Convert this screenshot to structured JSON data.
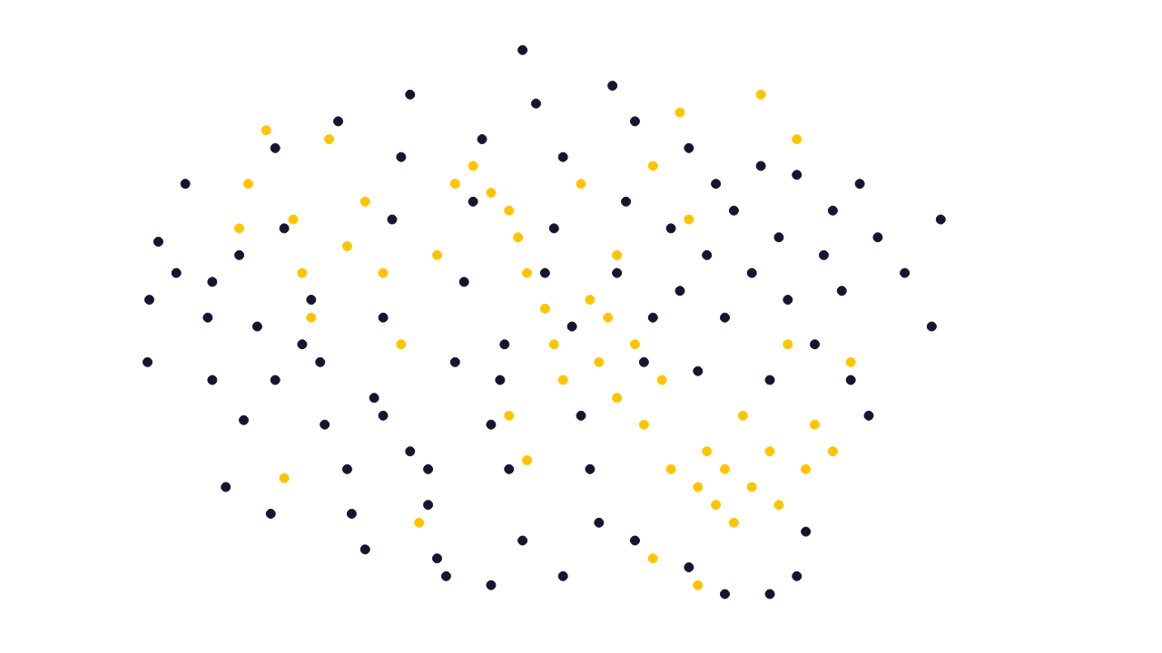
{
  "chart_data": {
    "type": "scatter",
    "grid": false,
    "tick_labels": false,
    "marker": "circle",
    "xlim": [
      0,
      1280
    ],
    "ylim": [
      0,
      720
    ],
    "series": [
      {
        "color": "#14152e",
        "x": [
          170,
          160,
          158,
          200,
          230,
          225,
          260,
          265,
          245,
          295,
          300,
          310,
          330,
          340,
          355,
          380,
          385,
          400,
          410,
          420,
          430,
          440,
          450,
          470,
          480,
          490,
          500,
          510,
          520,
          530,
          540,
          550,
          555,
          560,
          575,
          590,
          600,
          610,
          620,
          630,
          640,
          650,
          660,
          675,
          680,
          690,
          700,
          710,
          720,
          740,
          750,
          760,
          770,
          780,
          790,
          800,
          810,
          830,
          840,
          850,
          860,
          870,
          880,
          890,
          900,
          910,
          920,
          930,
          940,
          950,
          960,
          970,
          1000,
          1040,
          1030,
          880,
          850,
          800,
          760,
          370,
          300,
          450,
          575,
          700,
          620,
          540,
          470,
          420,
          350,
          280,
          230,
          190
        ],
        "y": [
          455,
          390,
          320,
          520,
          410,
          370,
          440,
          255,
          180,
          150,
          300,
          470,
          340,
          390,
          250,
          200,
          150,
          110,
          280,
          370,
          480,
          550,
          220,
          160,
          100,
          80,
          320,
          410,
          500,
          570,
          250,
          300,
          340,
          200,
          120,
          610,
          420,
          470,
          550,
          360,
          260,
          200,
          140,
          630,
          420,
          500,
          590,
          320,
          370,
          470,
          400,
          560,
          310,
          440,
          520,
          370,
          490,
          420,
          540,
          300,
          460,
          390,
          530,
          130,
          340,
          440,
          490,
          400,
          300,
          520,
          260,
          460,
          420,
          480,
          360,
          80,
          60,
          60,
          90,
          590,
          560,
          620,
          670,
          120,
          80,
          70,
          200,
          260,
          320,
          360,
          300,
          420
        ]
      },
      {
        "color": "#ffc400",
        "x": [
          290,
          270,
          260,
          320,
          330,
          340,
          310,
          460,
          480,
          500,
          520,
          540,
          560,
          570,
          580,
          600,
          610,
          620,
          640,
          650,
          660,
          670,
          680,
          700,
          710,
          720,
          730,
          740,
          750,
          760,
          770,
          780,
          790,
          800,
          810,
          820,
          830,
          840,
          850,
          860,
          870,
          880,
          890,
          900,
          920,
          940,
          380,
          420,
          440,
          400,
          560,
          580,
          720,
          770,
          680,
          360
        ],
        "y": [
          580,
          520,
          470,
          480,
          420,
          370,
          190,
          140,
          440,
          520,
          540,
          510,
          490,
          460,
          420,
          380,
          340,
          300,
          520,
          390,
          320,
          370,
          280,
          340,
          250,
          540,
          300,
          200,
          600,
          480,
          180,
          220,
          160,
          200,
          140,
          260,
          180,
          620,
          220,
          160,
          340,
          570,
          200,
          250,
          220,
          320,
          450,
          420,
          340,
          500,
          260,
          210,
          100,
          70,
          440,
          570
        ]
      }
    ]
  }
}
